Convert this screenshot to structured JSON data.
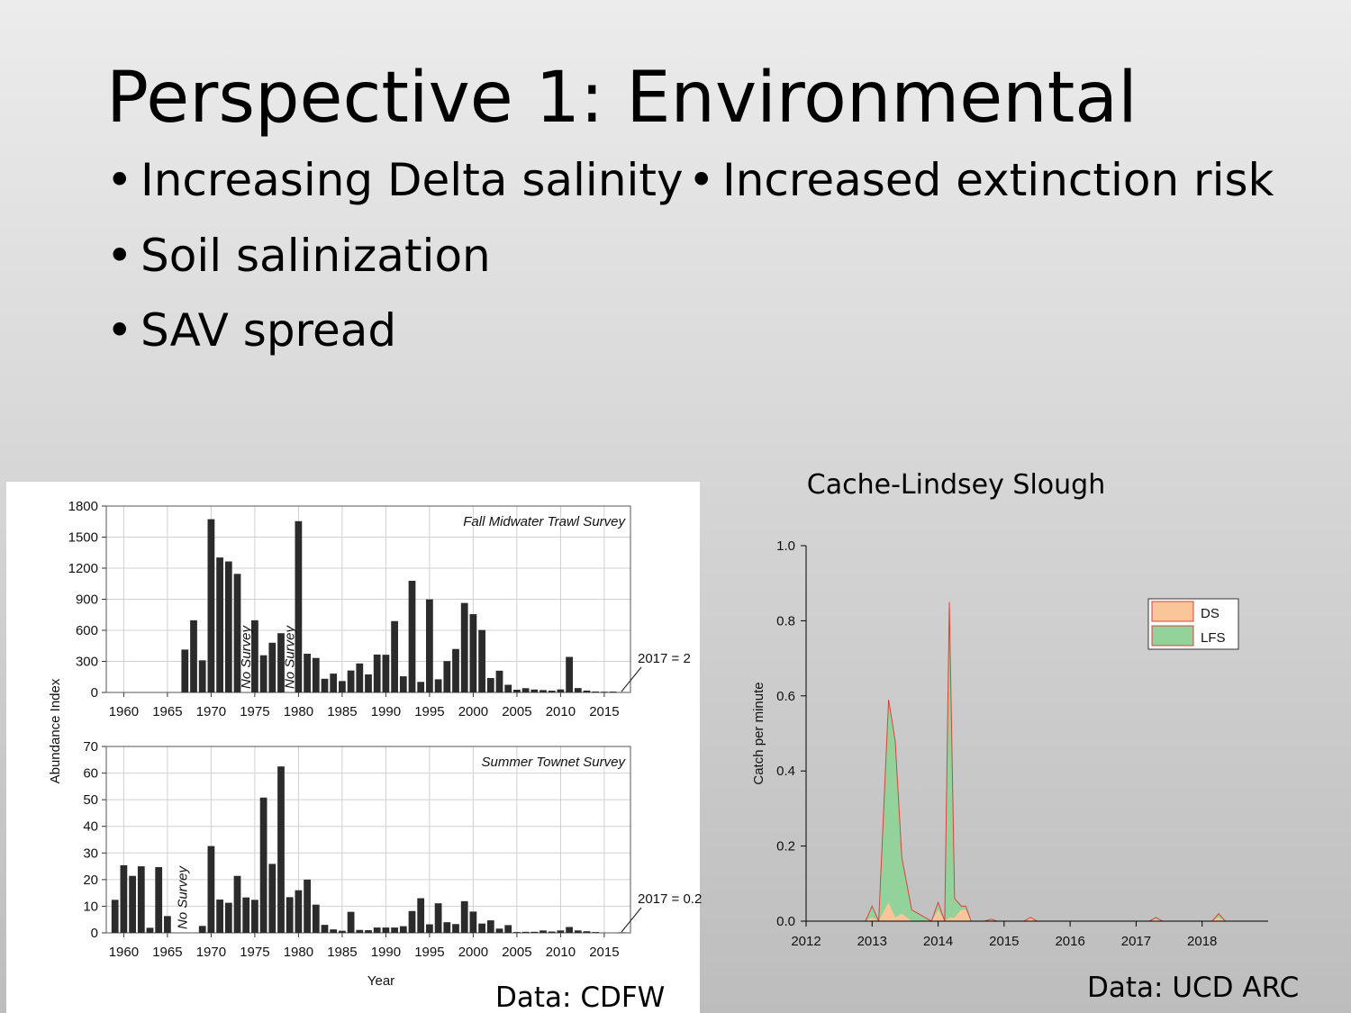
{
  "slide": {
    "title": "Perspective 1: Environmental",
    "bullets_left": [
      "Increasing Delta salinity",
      "Soil salinization",
      "SAV spread"
    ],
    "bullets_right": [
      "Increased extinction risk"
    ],
    "sources": [
      "Data: CDFW",
      "Data: UCD ARC"
    ]
  },
  "chart_data": [
    {
      "type": "bar",
      "title": "Fall Midwater Trawl Survey",
      "ylabel": "Abundance Index",
      "color": "#2b2b2b",
      "x": [
        1967,
        1968,
        1969,
        1970,
        1971,
        1972,
        1973,
        1974,
        1975,
        1976,
        1977,
        1978,
        1979,
        1980,
        1981,
        1982,
        1983,
        1984,
        1985,
        1986,
        1987,
        1988,
        1989,
        1990,
        1991,
        1992,
        1993,
        1994,
        1995,
        1996,
        1997,
        1998,
        1999,
        2000,
        2001,
        2002,
        2003,
        2004,
        2005,
        2006,
        2007,
        2008,
        2009,
        2010,
        2011,
        2012,
        2013,
        2014,
        2015,
        2016,
        2017
      ],
      "values": [
        414,
        697,
        310,
        1673,
        1303,
        1265,
        1145,
        null,
        697,
        359,
        480,
        572,
        null,
        1654,
        374,
        333,
        132,
        182,
        110,
        212,
        280,
        174,
        366,
        364,
        689,
        156,
        1078,
        102,
        899,
        127,
        303,
        420,
        864,
        756,
        603,
        139,
        210,
        74,
        26,
        41,
        28,
        23,
        17,
        29,
        343,
        42,
        18,
        9,
        7,
        8,
        2
      ],
      "xlim": [
        1958,
        2018
      ],
      "xticks": [
        1960,
        1965,
        1970,
        1975,
        1980,
        1985,
        1990,
        1995,
        2000,
        2005,
        2010,
        2015
      ],
      "ylim": [
        0,
        1800
      ],
      "yticks": [
        0,
        300,
        600,
        900,
        1200,
        1500,
        1800
      ],
      "grid": true,
      "annotations": [
        "2017 = 2",
        "No Survey",
        "No Survey"
      ]
    },
    {
      "type": "bar",
      "title": "Summer Townet Survey",
      "xlabel": "Year",
      "color": "#2b2b2b",
      "x": [
        1959,
        1960,
        1961,
        1962,
        1963,
        1964,
        1965,
        1966,
        1967,
        1968,
        1969,
        1970,
        1971,
        1972,
        1973,
        1974,
        1975,
        1976,
        1977,
        1978,
        1979,
        1980,
        1981,
        1982,
        1983,
        1984,
        1985,
        1986,
        1987,
        1988,
        1989,
        1990,
        1991,
        1992,
        1993,
        1994,
        1995,
        1996,
        1997,
        1998,
        1999,
        2000,
        2001,
        2002,
        2003,
        2004,
        2005,
        2006,
        2007,
        2008,
        2009,
        2010,
        2011,
        2012,
        2013,
        2014,
        2015,
        2016,
        2017
      ],
      "values": [
        12.4,
        25.4,
        21.4,
        25,
        1.9,
        24.7,
        6.3,
        null,
        null,
        null,
        2.6,
        32.6,
        12.5,
        11.3,
        21.4,
        13.3,
        12.4,
        50.8,
        25.9,
        62.5,
        13.4,
        16.0,
        20.0,
        10.6,
        3.0,
        1.3,
        0.8,
        7.9,
        1.1,
        1.0,
        2.0,
        2.0,
        2.0,
        2.5,
        8.2,
        13.0,
        3.2,
        11.1,
        4.0,
        3.3,
        11.9,
        8.0,
        3.5,
        4.7,
        1.6,
        2.9,
        0.3,
        0.4,
        0.4,
        0.9,
        0.5,
        0.9,
        2.2,
        0.9,
        0.6,
        0.3,
        0.0,
        0.0,
        0.2
      ],
      "xlim": [
        1958,
        2018
      ],
      "xticks": [
        1960,
        1965,
        1970,
        1975,
        1980,
        1985,
        1990,
        1995,
        2000,
        2005,
        2010,
        2015
      ],
      "ylim": [
        0,
        70
      ],
      "yticks": [
        0,
        10,
        20,
        30,
        40,
        50,
        60,
        70
      ],
      "grid": true,
      "annotations": [
        "2017 = 0.2",
        "No Survey"
      ]
    },
    {
      "type": "area",
      "stacked": true,
      "title": "Cache-Lindsey Slough",
      "ylabel": "Catch per minute",
      "outline_color": "#e0403a",
      "x": [
        2012.9,
        2013.0,
        2013.1,
        2013.25,
        2013.35,
        2013.45,
        2013.6,
        2013.9,
        2014.0,
        2014.1,
        2014.17,
        2014.25,
        2014.35,
        2014.42,
        2014.5,
        2014.7,
        2014.8,
        2014.9,
        2015.3,
        2015.4,
        2015.5,
        2017.2,
        2017.3,
        2017.4,
        2018.15,
        2018.25,
        2018.35
      ],
      "series": [
        {
          "name": "DS",
          "color": "#fac598",
          "values": [
            0,
            0.01,
            0,
            0.05,
            0.01,
            0.02,
            0,
            0,
            0.03,
            0,
            0.01,
            0.01,
            0.03,
            0.03,
            0,
            0,
            0.005,
            0,
            0,
            0.01,
            0,
            0,
            0.005,
            0,
            0,
            0.01,
            0
          ]
        },
        {
          "name": "LFS",
          "color": "#93d29b",
          "values": [
            0,
            0.03,
            0,
            0.54,
            0.47,
            0.15,
            0.03,
            0,
            0.02,
            0,
            0.84,
            0.05,
            0.01,
            0.01,
            0,
            0,
            0,
            0,
            0,
            0,
            0,
            0,
            0.005,
            0,
            0,
            0.01,
            0
          ]
        }
      ],
      "xlim": [
        2012,
        2019
      ],
      "xticks": [
        2012,
        2013,
        2014,
        2015,
        2016,
        2017,
        2018
      ],
      "ylim": [
        0,
        1
      ],
      "yticks": [
        {
          "value": 0,
          "label": "0.0"
        },
        0.2,
        0.4,
        0.6,
        0.8,
        {
          "value": 1,
          "label": "1.0"
        }
      ],
      "legend": "upper right"
    }
  ]
}
